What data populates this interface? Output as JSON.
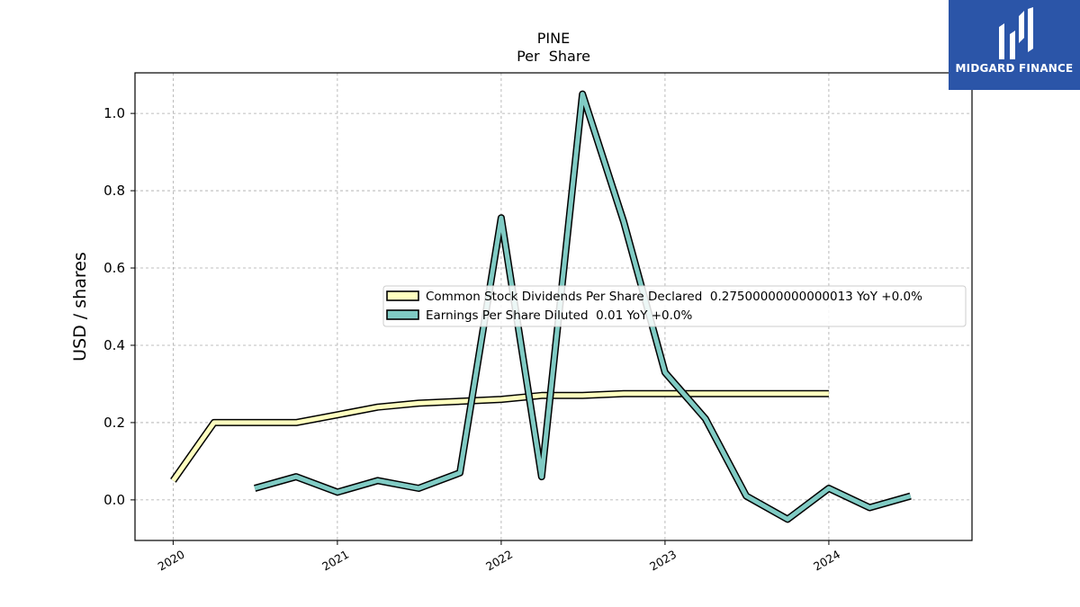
{
  "brand": {
    "name": "MIDGARD FINANCE",
    "color": "#2b55a8",
    "icon": "midgard-logo-icon"
  },
  "chart_data": {
    "type": "line",
    "title": "PINE",
    "subtitle": "Per  Share",
    "xlabel": "",
    "ylabel": "USD / shares",
    "ylim": [
      -0.105,
      1.105
    ],
    "xlim": [
      "2019-10-08",
      "2024-11-15"
    ],
    "x_ticks": [
      "2020",
      "2021",
      "2022",
      "2023",
      "2024"
    ],
    "y_ticks": [
      "0.0",
      "0.2",
      "0.4",
      "0.6",
      "0.8",
      "1.0"
    ],
    "y_tick_values": [
      0.0,
      0.2,
      0.4,
      0.6,
      0.8,
      1.0
    ],
    "grid": true,
    "legend_position": "center-right",
    "series": [
      {
        "name": "Common Stock Dividends Per Share Declared  0.27500000000000013 YoY +0.0%",
        "color": "#ffffbf",
        "points": [
          [
            "2020-01-01",
            0.05
          ],
          [
            "2020-04-01",
            0.2
          ],
          [
            "2020-07-01",
            0.2
          ],
          [
            "2020-10-01",
            0.2
          ],
          [
            "2021-01-01",
            0.22
          ],
          [
            "2021-04-01",
            0.24
          ],
          [
            "2021-07-01",
            0.25
          ],
          [
            "2021-10-01",
            0.255
          ],
          [
            "2022-01-01",
            0.26
          ],
          [
            "2022-04-01",
            0.27
          ],
          [
            "2022-07-01",
            0.27
          ],
          [
            "2022-10-01",
            0.275
          ],
          [
            "2023-01-01",
            0.275
          ],
          [
            "2023-04-01",
            0.275
          ],
          [
            "2023-07-01",
            0.275
          ],
          [
            "2023-10-01",
            0.275
          ],
          [
            "2024-01-01",
            0.275
          ]
        ]
      },
      {
        "name": "Earnings Per Share Diluted  0.01 YoY +0.0%",
        "color": "#80cbc4",
        "points": [
          [
            "2020-07-01",
            0.03
          ],
          [
            "2020-10-01",
            0.06
          ],
          [
            "2021-01-01",
            0.02
          ],
          [
            "2021-04-01",
            0.05
          ],
          [
            "2021-07-01",
            0.03
          ],
          [
            "2021-10-01",
            0.07
          ],
          [
            "2022-01-01",
            0.73
          ],
          [
            "2022-04-01",
            0.06
          ],
          [
            "2022-07-01",
            1.05
          ],
          [
            "2022-10-01",
            0.72
          ],
          [
            "2023-01-01",
            0.33
          ],
          [
            "2023-04-01",
            0.21
          ],
          [
            "2023-07-01",
            0.01
          ],
          [
            "2023-10-01",
            -0.05
          ],
          [
            "2024-01-01",
            0.03
          ],
          [
            "2024-04-01",
            -0.02
          ],
          [
            "2024-07-01",
            0.01
          ]
        ]
      }
    ]
  }
}
